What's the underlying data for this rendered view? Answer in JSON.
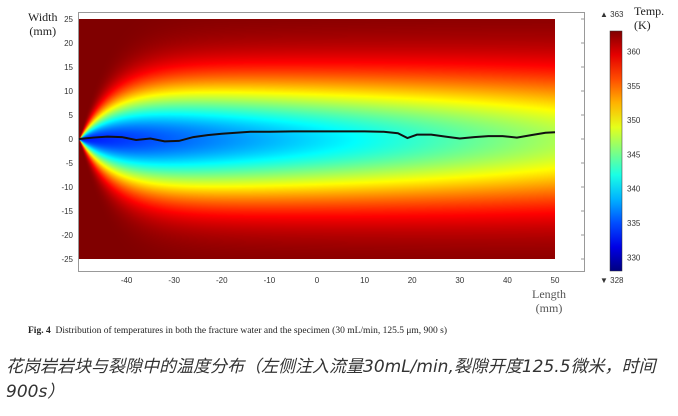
{
  "chart_data": {
    "type": "heatmap",
    "title": "",
    "xlabel": "Length",
    "xunit": "(mm)",
    "ylabel": "Width",
    "yunit": "(mm)",
    "xlim": [
      -50,
      50
    ],
    "ylim": [
      -25,
      25
    ],
    "xticks": [
      -40,
      -30,
      -20,
      -10,
      0,
      10,
      20,
      30,
      40,
      50
    ],
    "yticks": [
      25,
      20,
      15,
      10,
      5,
      0,
      -5,
      -10,
      -15,
      -20,
      -25
    ],
    "colorbar": {
      "label": "Temp.",
      "unit": "(K)",
      "min": 328,
      "max": 363,
      "min_label": "▼ 328",
      "max_label": "▲ 363",
      "ticks": [
        360,
        355,
        350,
        345,
        340,
        335,
        330
      ],
      "colormap": "jet"
    },
    "field_description_params": {
      "ambient_K": 363,
      "inlet_side": "left"
    },
    "fracture_line": {
      "x": [
        -50,
        -47,
        -44,
        -41,
        -38,
        -35,
        -32,
        -29,
        -26,
        -23,
        -20,
        -17,
        -14,
        -10,
        -5,
        0,
        5,
        10,
        14,
        17,
        19,
        21,
        24,
        27,
        30,
        33,
        36,
        39,
        42,
        45,
        48,
        50
      ],
      "y": [
        0,
        0.3,
        0.5,
        0.4,
        -0.2,
        0.1,
        -0.5,
        -0.4,
        0.4,
        0.8,
        1.1,
        1.3,
        1.5,
        1.5,
        1.6,
        1.6,
        1.6,
        1.6,
        1.5,
        1.2,
        0.2,
        0.9,
        0.9,
        0.5,
        0.1,
        0.4,
        0.6,
        0.6,
        0.3,
        0.8,
        1.3,
        1.4
      ]
    }
  },
  "caption": {
    "fig": "Fig. 4",
    "text": "Distribution of temperatures in both the fracture water and the specimen (30 mL/min, 125.5  μm, 900 s)"
  },
  "chinese_caption": "花岗岩岩块与裂隙中的温度分布（左侧注入流量30mL/min,裂隙开度125.5微米，时间900s）"
}
